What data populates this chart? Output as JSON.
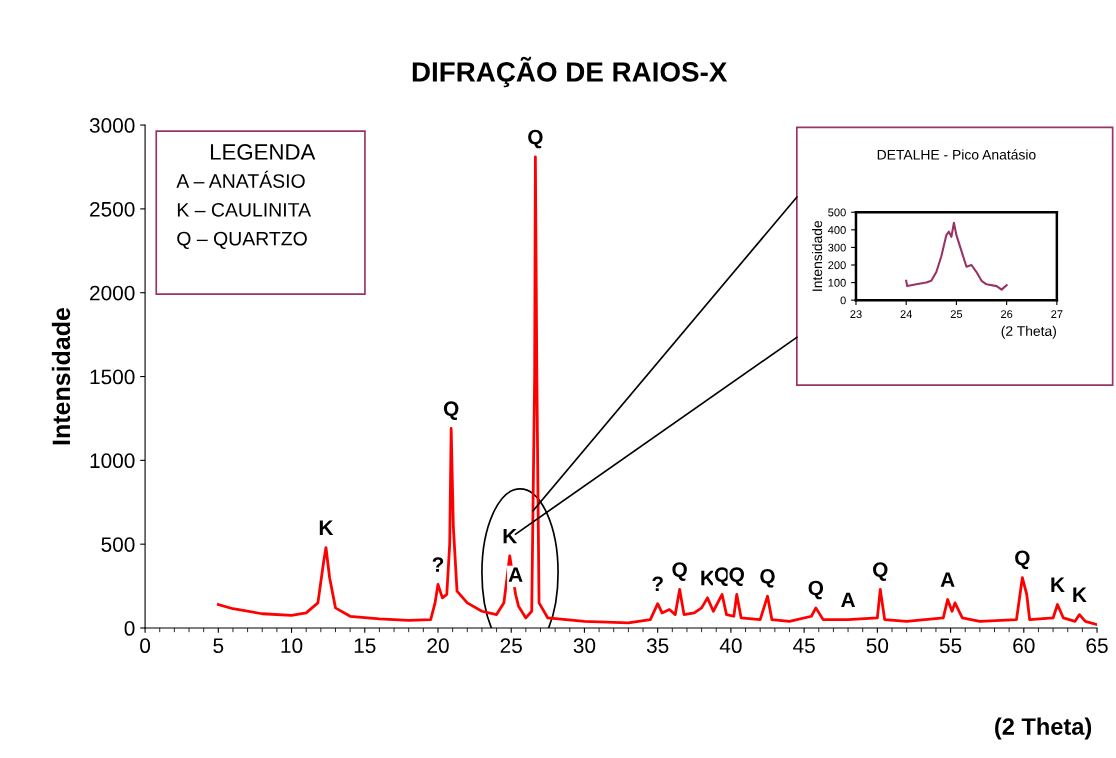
{
  "chart_data": [
    {
      "type": "line",
      "title": "DIFRAÇÃO DE RAIOS-X",
      "xlabel": "(2 Theta)",
      "ylabel": "Intensidade",
      "xlim": [
        0,
        65
      ],
      "xticks": [
        0,
        5,
        10,
        15,
        20,
        25,
        30,
        35,
        40,
        45,
        50,
        55,
        60,
        65
      ],
      "ylim": [
        0,
        3000
      ],
      "yticks": [
        0,
        500,
        1000,
        1500,
        2000,
        2500,
        3000
      ],
      "grid": false,
      "legend": false,
      "series": [
        {
          "color": "#ff0000",
          "x": [
            5,
            6,
            8,
            10,
            11,
            11.8,
            12.2,
            12.35,
            12.6,
            13,
            14,
            16,
            18,
            19.5,
            19.8,
            20.0,
            20.3,
            20.6,
            20.8,
            20.9,
            21.05,
            21.3,
            22,
            23,
            24,
            24.5,
            24.9,
            25.3,
            25.5,
            26,
            26.4,
            26.6,
            26.65,
            26.75,
            26.9,
            27.5,
            30,
            33,
            34.5,
            35,
            35.3,
            35.8,
            36.2,
            36.5,
            36.8,
            37.5,
            38,
            38.4,
            38.8,
            39.4,
            39.7,
            40.2,
            40.4,
            40.7,
            42,
            42.5,
            42.8,
            44,
            45.5,
            45.8,
            46.3,
            48,
            50,
            50.2,
            50.5,
            52,
            54.5,
            54.8,
            55.1,
            55.3,
            55.8,
            57,
            59.5,
            59.9,
            60.2,
            60.4,
            62,
            62.3,
            62.7,
            63.5,
            63.8,
            64.2,
            65
          ],
          "values": [
            140,
            115,
            85,
            75,
            90,
            150,
            400,
            480,
            300,
            120,
            70,
            55,
            45,
            50,
            150,
            260,
            180,
            200,
            500,
            1190,
            600,
            220,
            150,
            100,
            80,
            150,
            430,
            200,
            130,
            60,
            100,
            1500,
            2810,
            1500,
            150,
            60,
            40,
            30,
            50,
            145,
            90,
            110,
            80,
            230,
            80,
            90,
            120,
            180,
            100,
            200,
            80,
            70,
            200,
            60,
            50,
            190,
            50,
            40,
            70,
            120,
            50,
            50,
            60,
            230,
            50,
            40,
            60,
            170,
            100,
            150,
            60,
            40,
            50,
            300,
            200,
            50,
            60,
            140,
            60,
            40,
            80,
            40,
            20
          ]
        }
      ],
      "annotations": [
        "LEGENDA",
        "A – ANATÁSIO",
        "K – CAULINITA",
        "Q – QUARTZO",
        {
          "text": "K",
          "x": 12.35,
          "y": 480
        },
        {
          "text": "?",
          "x": 20.0,
          "y": 260
        },
        {
          "text": "Q",
          "x": 20.9,
          "y": 1190
        },
        {
          "text": "K",
          "x": 24.9,
          "y": 430
        },
        {
          "text": "A",
          "x": 25.3,
          "y": 200
        },
        {
          "text": "Q",
          "x": 26.65,
          "y": 2810
        },
        {
          "text": "?",
          "x": 35,
          "y": 145
        },
        {
          "text": "Q",
          "x": 36.5,
          "y": 230
        },
        {
          "text": "K",
          "x": 38.4,
          "y": 180
        },
        {
          "text": "Q",
          "x": 39.4,
          "y": 200
        },
        {
          "text": "Q",
          "x": 40.4,
          "y": 200
        },
        {
          "text": "Q",
          "x": 42.5,
          "y": 190
        },
        {
          "text": "Q",
          "x": 45.8,
          "y": 120
        },
        {
          "text": "A",
          "x": 48,
          "y": 50
        },
        {
          "text": "Q",
          "x": 50.2,
          "y": 230
        },
        {
          "text": "A",
          "x": 54.8,
          "y": 170
        },
        {
          "text": "Q",
          "x": 59.9,
          "y": 300
        },
        {
          "text": "K",
          "x": 62.3,
          "y": 140
        },
        {
          "text": "K",
          "x": 63.8,
          "y": 80
        }
      ]
    },
    {
      "type": "line",
      "title": "DETALHE - Pico Anatásio",
      "xlabel": "(2 Theta)",
      "ylabel": "Intensidade",
      "xlim": [
        23,
        27
      ],
      "xticks": [
        23,
        24,
        25,
        26,
        27
      ],
      "ylim": [
        0,
        500
      ],
      "yticks": [
        0,
        100,
        200,
        300,
        400,
        500
      ],
      "grid": false,
      "legend": false,
      "series": [
        {
          "color": "#993366",
          "x": [
            24,
            24.02,
            24.2,
            24.4,
            24.5,
            24.6,
            24.7,
            24.8,
            24.85,
            24.9,
            24.95,
            25,
            25.1,
            25.2,
            25.3,
            25.4,
            25.5,
            25.6,
            25.8,
            25.9,
            26
          ],
          "values": [
            110,
            80,
            90,
            100,
            110,
            160,
            250,
            370,
            390,
            360,
            440,
            370,
            280,
            190,
            200,
            160,
            110,
            90,
            80,
            60,
            85
          ]
        }
      ]
    }
  ]
}
